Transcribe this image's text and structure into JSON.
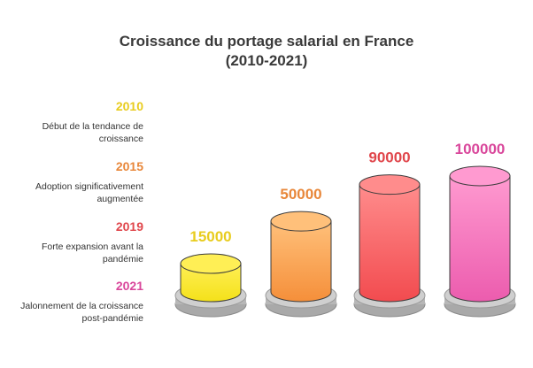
{
  "chart_data": {
    "type": "bar",
    "title_line1": "Croissance du portage salarial en France",
    "title_line2": "(2010-2021)",
    "categories": [
      "2010",
      "2015",
      "2019",
      "2021"
    ],
    "values": [
      15000,
      50000,
      90000,
      100000
    ],
    "value_labels": [
      "15000",
      "50000",
      "90000",
      "100000"
    ],
    "descriptions": [
      [
        "Début de la tendance de",
        "croissance"
      ],
      [
        "Adoption significativement",
        "augmentée"
      ],
      [
        "Forte expansion avant la",
        "pandémie"
      ],
      [
        "Jalonnement de la croissance",
        "post-pandémie"
      ]
    ],
    "colors": [
      "#e8cc1e",
      "#e8873a",
      "#e0464b",
      "#d9479b"
    ],
    "body_top_colors": [
      "#ffef55",
      "#ffc07a",
      "#ff8c8c",
      "#ff9ad0"
    ],
    "body_bottom_colors": [
      "#f4e11a",
      "#f58f3a",
      "#f24b4f",
      "#ec5cae"
    ],
    "legend_position": "left"
  }
}
